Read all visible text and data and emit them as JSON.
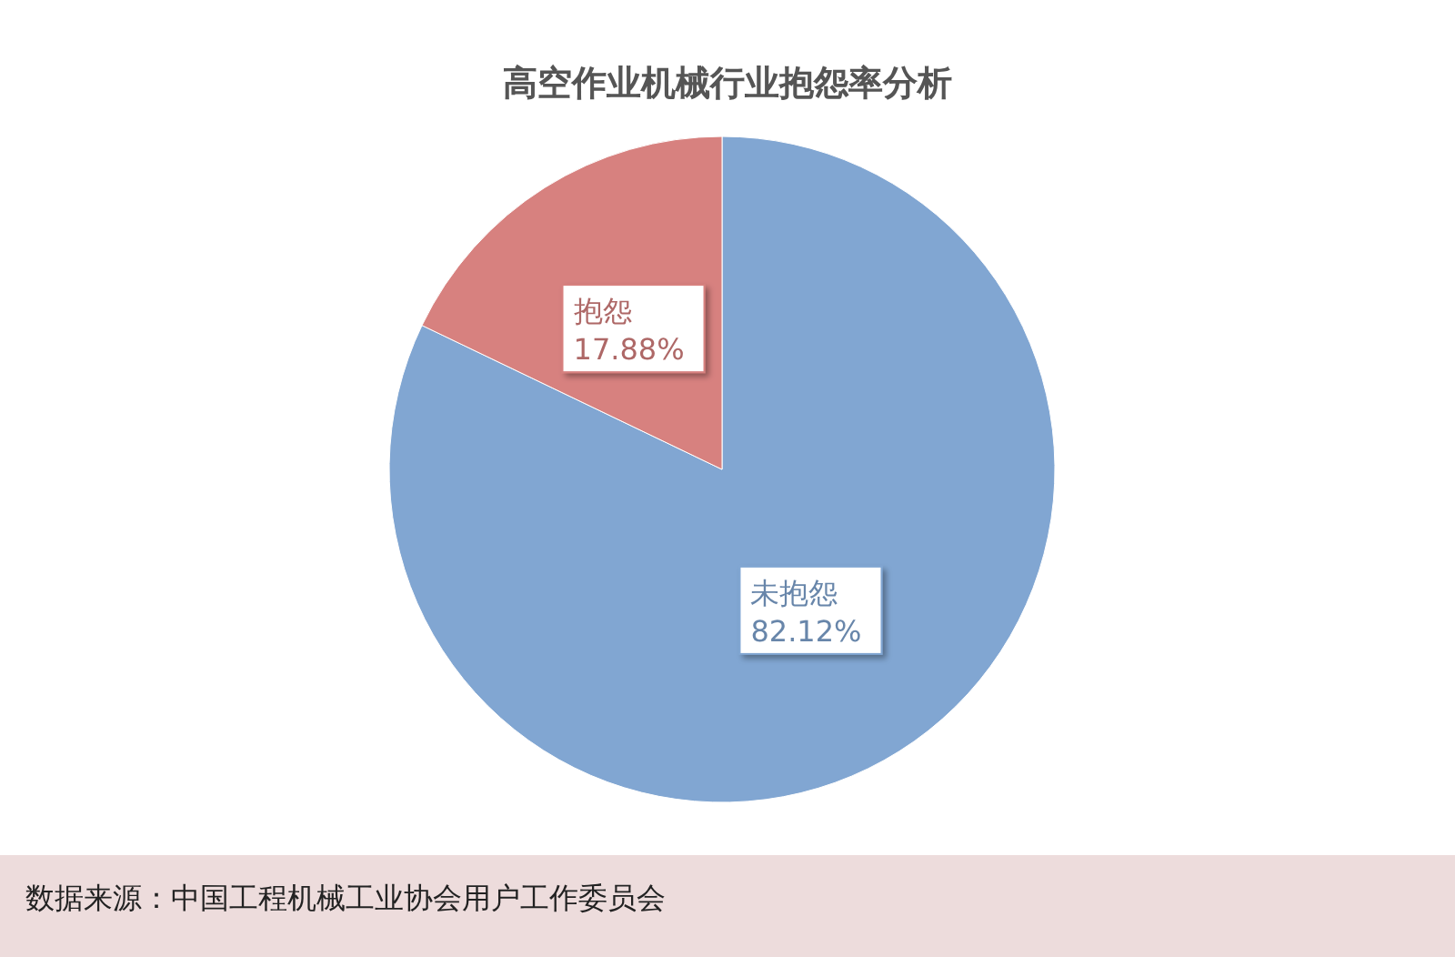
{
  "chart_data": {
    "type": "pie",
    "title": "高空作业机械行业抱怨率分析",
    "categories": [
      "未抱怨",
      "抱怨"
    ],
    "values": [
      82.12,
      17.88
    ],
    "colors": [
      "#81a6d2",
      "#d7817f"
    ],
    "value_labels": [
      "82.12%",
      "17.88%"
    ],
    "annotations": [
      "数据来源：中国工程机械工业协会用户工作委员会"
    ]
  }
}
